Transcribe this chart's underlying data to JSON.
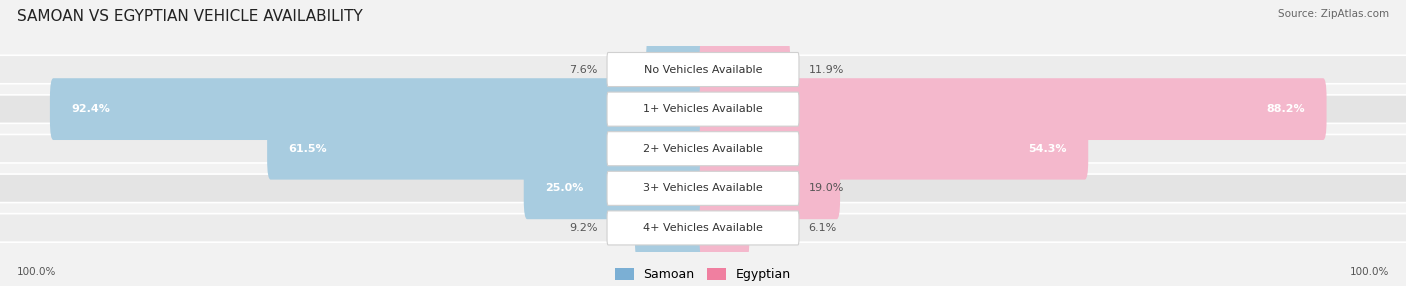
{
  "title": "SAMOAN VS EGYPTIAN VEHICLE AVAILABILITY",
  "source": "Source: ZipAtlas.com",
  "categories": [
    "No Vehicles Available",
    "1+ Vehicles Available",
    "2+ Vehicles Available",
    "3+ Vehicles Available",
    "4+ Vehicles Available"
  ],
  "samoan_values": [
    7.6,
    92.4,
    61.5,
    25.0,
    9.2
  ],
  "egyptian_values": [
    11.9,
    88.2,
    54.3,
    19.0,
    6.1
  ],
  "samoan_color": "#7bafd4",
  "egyptian_color": "#f07fa0",
  "samoan_color_light": "#a8cce0",
  "egyptian_color_light": "#f4b8cc",
  "bg_color": "#f2f2f2",
  "legend_samoan": "Samoan",
  "legend_egyptian": "Egyptian",
  "max_value": 100.0,
  "title_fontsize": 11,
  "label_fontsize": 8,
  "value_fontsize": 8
}
